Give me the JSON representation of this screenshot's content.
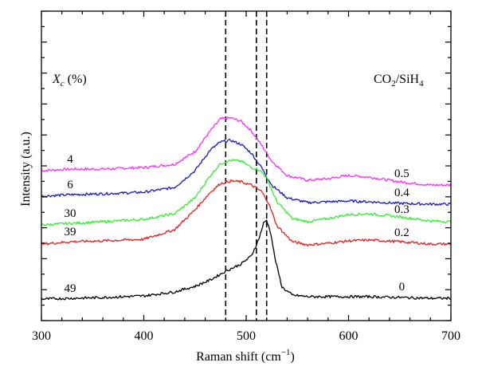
{
  "chart_data": {
    "type": "line",
    "xlabel_main": "Raman shift (cm",
    "xlabel_sup": "−1",
    "xlabel_tail": ")",
    "ylabel": "Intensity (a.u.)",
    "xlim": [
      300,
      700
    ],
    "xticks": [
      "300",
      "400",
      "500",
      "600",
      "700"
    ],
    "xtick_values": [
      300,
      400,
      500,
      600,
      700
    ],
    "y_units": "arbitrary (offset stacked)",
    "reference_lines_x": [
      480,
      510,
      520
    ],
    "left_header": {
      "symbol": "X",
      "sub": "c",
      "unit": " (%)"
    },
    "right_header": {
      "co2": "CO",
      "co2_sub": "2",
      "sep": "/SiH",
      "sih_sub": "4"
    },
    "series": [
      {
        "name": "0.5",
        "xc": "4",
        "color": "#ff2bff",
        "points": [
          [
            300,
            164
          ],
          [
            330,
            166
          ],
          [
            360,
            166
          ],
          [
            400,
            168
          ],
          [
            430,
            172
          ],
          [
            450,
            188
          ],
          [
            465,
            214
          ],
          [
            475,
            229
          ],
          [
            485,
            230
          ],
          [
            495,
            226
          ],
          [
            505,
            214
          ],
          [
            515,
            196
          ],
          [
            525,
            176
          ],
          [
            540,
            158
          ],
          [
            560,
            152
          ],
          [
            580,
            154
          ],
          [
            600,
            158
          ],
          [
            620,
            156
          ],
          [
            650,
            150
          ],
          [
            680,
            146
          ],
          [
            700,
            146
          ]
        ]
      },
      {
        "name": "0.4",
        "xc": "6",
        "color": "#1a1aba",
        "points": [
          [
            300,
            132
          ],
          [
            330,
            134
          ],
          [
            360,
            135
          ],
          [
            400,
            137
          ],
          [
            430,
            143
          ],
          [
            450,
            164
          ],
          [
            465,
            190
          ],
          [
            475,
            200
          ],
          [
            485,
            202
          ],
          [
            495,
            197
          ],
          [
            505,
            186
          ],
          [
            515,
            168
          ],
          [
            525,
            146
          ],
          [
            540,
            130
          ],
          [
            560,
            124
          ],
          [
            580,
            125
          ],
          [
            600,
            126
          ],
          [
            620,
            125
          ],
          [
            650,
            123
          ],
          [
            680,
            122
          ],
          [
            700,
            122
          ]
        ]
      },
      {
        "name": "0.3",
        "xc": "30",
        "color": "#33ee33",
        "points": [
          [
            300,
            96
          ],
          [
            330,
            98
          ],
          [
            360,
            100
          ],
          [
            400,
            103
          ],
          [
            430,
            110
          ],
          [
            450,
            130
          ],
          [
            465,
            158
          ],
          [
            475,
            173
          ],
          [
            485,
            177
          ],
          [
            495,
            176
          ],
          [
            505,
            168
          ],
          [
            513,
            165
          ],
          [
            520,
            155
          ],
          [
            530,
            125
          ],
          [
            545,
            104
          ],
          [
            560,
            100
          ],
          [
            580,
            104
          ],
          [
            600,
            109
          ],
          [
            620,
            110
          ],
          [
            650,
            106
          ],
          [
            680,
            101
          ],
          [
            700,
            100
          ]
        ]
      },
      {
        "name": "0.2",
        "xc": "39",
        "color": "#e02020",
        "points": [
          [
            300,
            72
          ],
          [
            330,
            75
          ],
          [
            360,
            76
          ],
          [
            400,
            78
          ],
          [
            430,
            90
          ],
          [
            450,
            115
          ],
          [
            465,
            137
          ],
          [
            475,
            148
          ],
          [
            485,
            151
          ],
          [
            495,
            150
          ],
          [
            505,
            146
          ],
          [
            515,
            138
          ],
          [
            522,
            123
          ],
          [
            530,
            95
          ],
          [
            545,
            75
          ],
          [
            560,
            71
          ],
          [
            580,
            73
          ],
          [
            600,
            76
          ],
          [
            620,
            77
          ],
          [
            650,
            75
          ],
          [
            680,
            72
          ],
          [
            700,
            72
          ]
        ]
      },
      {
        "name": "0",
        "xc": "49",
        "color": "#000000",
        "points": [
          [
            300,
            3
          ],
          [
            330,
            4
          ],
          [
            360,
            5
          ],
          [
            400,
            7
          ],
          [
            430,
            12
          ],
          [
            450,
            19
          ],
          [
            465,
            27
          ],
          [
            480,
            38
          ],
          [
            495,
            47
          ],
          [
            505,
            57
          ],
          [
            512,
            77
          ],
          [
            517,
            98
          ],
          [
            520,
            102
          ],
          [
            524,
            86
          ],
          [
            528,
            55
          ],
          [
            535,
            18
          ],
          [
            545,
            8
          ],
          [
            560,
            6
          ],
          [
            580,
            6
          ],
          [
            600,
            6
          ],
          [
            620,
            6
          ],
          [
            650,
            5
          ],
          [
            680,
            4
          ],
          [
            700,
            4
          ]
        ]
      }
    ]
  }
}
